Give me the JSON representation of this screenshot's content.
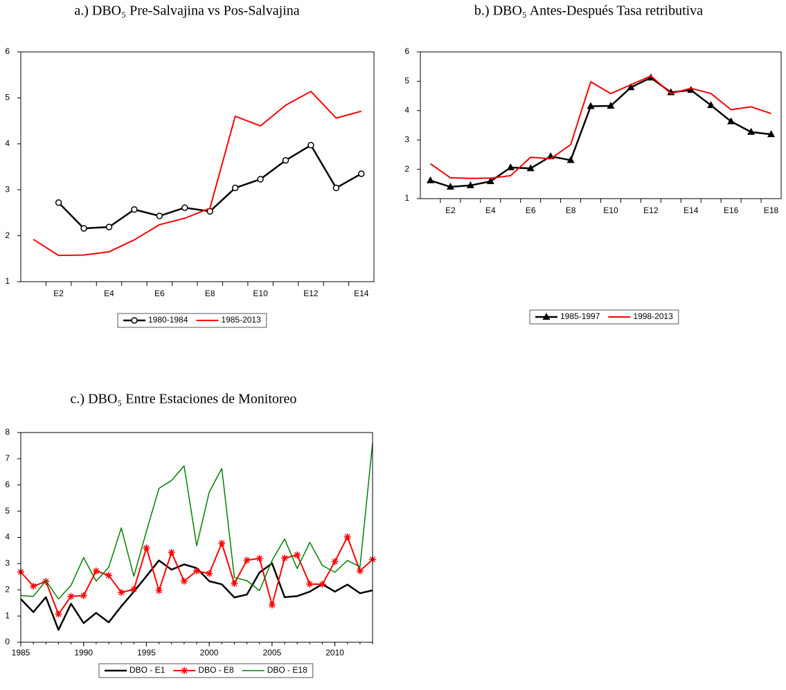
{
  "chart_data": [
    {
      "type": "line",
      "title": "a.) DBO₅ Pre-Salvajina vs  Pos-Salvajina",
      "categories": [
        null,
        "E2",
        null,
        "E4",
        null,
        "E6",
        null,
        "E8",
        null,
        "E10",
        null,
        "E12",
        null,
        "E14"
      ],
      "ylim": [
        1,
        6
      ],
      "yticks": [
        1,
        2,
        3,
        4,
        5,
        6
      ],
      "series": [
        {
          "name": "1980-1984",
          "color": "#000000",
          "marker": "circle",
          "values": [
            null,
            2.72,
            2.16,
            2.19,
            2.57,
            2.43,
            2.61,
            2.53,
            3.04,
            3.23,
            3.64,
            3.97,
            3.04,
            3.35
          ]
        },
        {
          "name": "1985-2013",
          "color": "#ff0000",
          "values": [
            1.92,
            1.57,
            1.58,
            1.65,
            1.91,
            2.24,
            2.38,
            2.6,
            4.6,
            4.39,
            4.84,
            5.14,
            4.56,
            4.71
          ]
        }
      ]
    },
    {
      "type": "line",
      "title": "b.) DBO₅ Antes-Después Tasa retributiva",
      "categories": [
        null,
        "E2",
        null,
        "E4",
        null,
        "E6",
        null,
        "E8",
        null,
        "E10",
        null,
        "E12",
        null,
        "E14",
        null,
        "E16",
        null,
        "E18"
      ],
      "ylim": [
        1,
        6
      ],
      "yticks": [
        1,
        2,
        3,
        4,
        5,
        6
      ],
      "series": [
        {
          "name": "1985-1997",
          "color": "#000000",
          "marker": "triangle",
          "values": [
            1.62,
            1.4,
            1.45,
            1.59,
            2.06,
            2.03,
            2.44,
            2.31,
            4.15,
            4.16,
            4.79,
            5.12,
            4.62,
            4.7,
            4.18,
            3.63,
            3.27,
            3.19
          ]
        },
        {
          "name": "1998-2013",
          "color": "#ff0000",
          "values": [
            2.19,
            1.71,
            1.69,
            1.7,
            1.78,
            2.41,
            2.36,
            2.84,
            4.98,
            4.58,
            4.88,
            5.18,
            4.58,
            4.76,
            4.58,
            4.03,
            4.13,
            3.9
          ]
        }
      ]
    },
    {
      "type": "line",
      "title": "c.) DBO₅ Entre Estaciones de Monitoreo",
      "x": [
        1985,
        1986,
        1987,
        1988,
        1989,
        1990,
        1991,
        1992,
        1993,
        1994,
        1995,
        1996,
        1997,
        1998,
        1999,
        2000,
        2001,
        2002,
        2003,
        2004,
        2005,
        2006,
        2007,
        2008,
        2009,
        2010,
        2011,
        2012,
        2013
      ],
      "xlim": [
        1985,
        2013
      ],
      "xticks": [
        1985,
        1990,
        1995,
        2000,
        2005,
        2010
      ],
      "ylim": [
        0,
        8
      ],
      "yticks": [
        0,
        1,
        2,
        3,
        4,
        5,
        6,
        7,
        8
      ],
      "series": [
        {
          "name": "DBO - E1",
          "color": "#000000",
          "values": [
            1.65,
            1.15,
            1.72,
            0.47,
            1.47,
            0.73,
            1.12,
            0.76,
            1.37,
            1.93,
            2.52,
            3.12,
            2.77,
            2.97,
            2.83,
            2.33,
            2.21,
            1.71,
            1.82,
            2.66,
            3.01,
            1.72,
            1.76,
            1.93,
            2.22,
            1.93,
            2.2,
            1.87,
            1.98
          ]
        },
        {
          "name": "DBO - E8",
          "color": "#ff0000",
          "marker": "star",
          "values": [
            2.68,
            2.14,
            2.32,
            1.07,
            1.75,
            1.78,
            2.72,
            2.55,
            1.9,
            2.02,
            3.6,
            1.97,
            3.43,
            2.33,
            2.72,
            2.62,
            3.78,
            2.24,
            3.13,
            3.2,
            1.42,
            3.21,
            3.33,
            2.22,
            2.21,
            3.08,
            4.02,
            2.72,
            3.16
          ]
        },
        {
          "name": "DBO - E18",
          "color": "#008000",
          "values": [
            1.78,
            1.75,
            2.35,
            1.65,
            2.17,
            3.23,
            2.33,
            2.86,
            4.36,
            2.52,
            4.23,
            5.87,
            6.17,
            6.73,
            3.68,
            5.73,
            6.63,
            2.47,
            2.35,
            1.97,
            3.12,
            3.94,
            2.81,
            3.81,
            2.93,
            2.67,
            3.12,
            2.88,
            7.6
          ]
        }
      ]
    }
  ]
}
